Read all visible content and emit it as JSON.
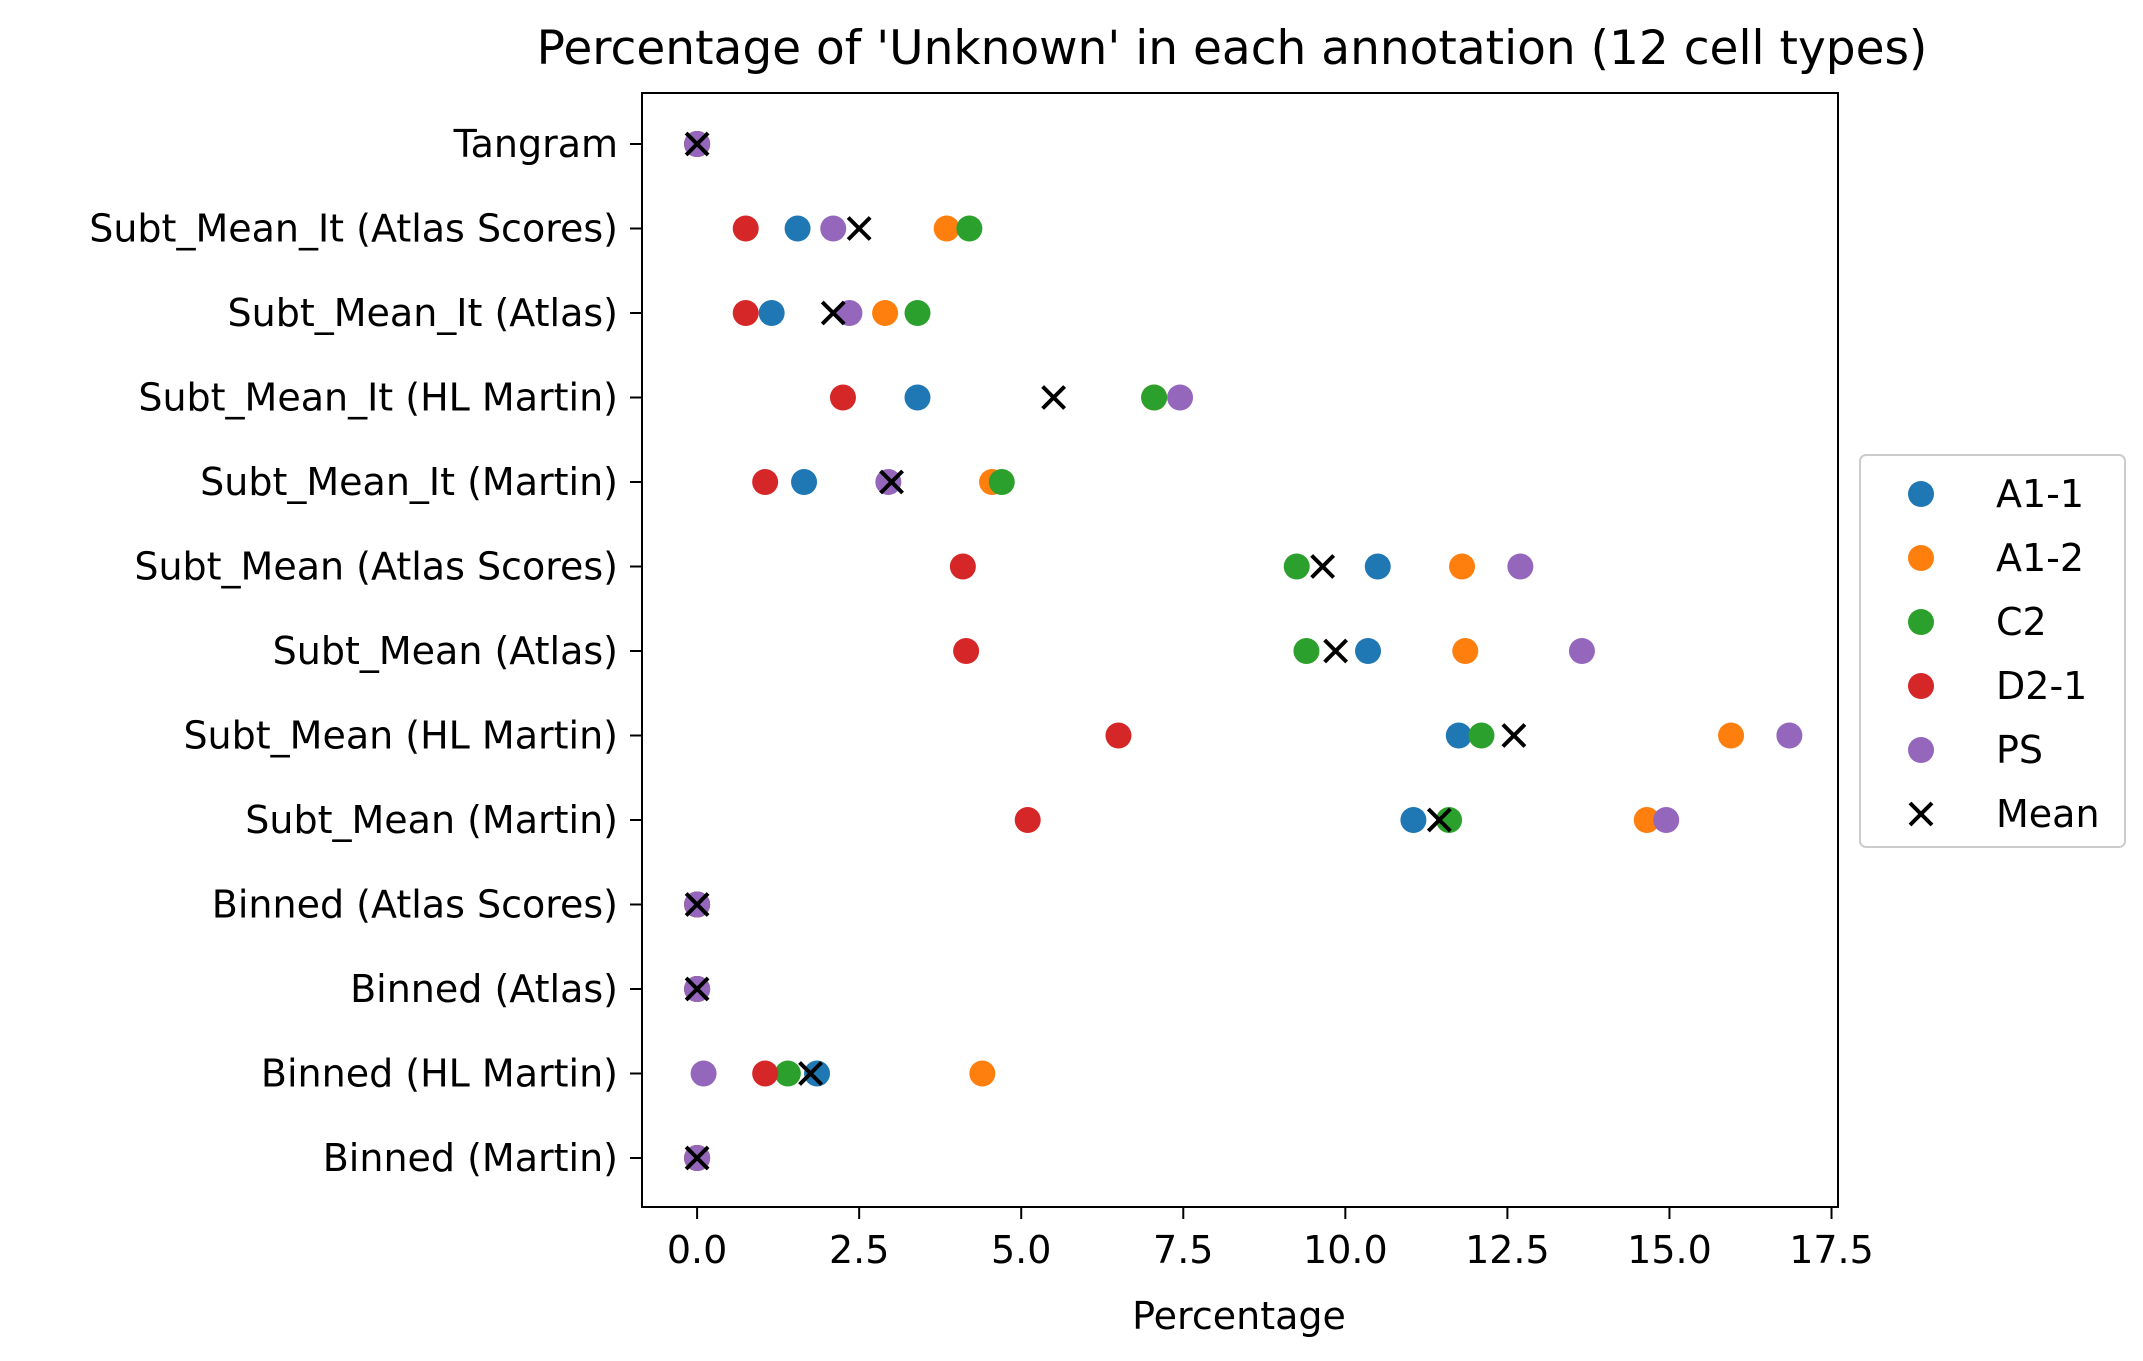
{
  "chart_data": {
    "type": "scatter",
    "title": "Percentage of 'Unknown' in each annotation (12 cell types)",
    "xlabel": "Percentage",
    "ylabel": "",
    "xlim": [
      -0.85,
      17.6
    ],
    "xticks": [
      0.0,
      2.5,
      5.0,
      7.5,
      10.0,
      12.5,
      15.0,
      17.5
    ],
    "xtick_labels": [
      "0.0",
      "2.5",
      "5.0",
      "7.5",
      "10.0",
      "12.5",
      "15.0",
      "17.5"
    ],
    "grid": false,
    "legend_position": "right",
    "categories": [
      "Tangram",
      "Subt_Mean_It (Atlas Scores)",
      "Subt_Mean_It (Atlas)",
      "Subt_Mean_It (HL Martin)",
      "Subt_Mean_It (Martin)",
      "Subt_Mean (Atlas Scores)",
      "Subt_Mean (Atlas)",
      "Subt_Mean (HL Martin)",
      "Subt_Mean (Martin)",
      "Binned (Atlas Scores)",
      "Binned (Atlas)",
      "Binned (HL Martin)",
      "Binned (Martin)"
    ],
    "series": [
      {
        "name": "A1-1",
        "marker": "o",
        "color": "#1f77b4",
        "values": [
          0,
          1.55,
          1.15,
          3.4,
          1.65,
          10.5,
          10.35,
          11.75,
          11.05,
          0,
          0,
          1.85,
          0
        ]
      },
      {
        "name": "A1-2",
        "marker": "o",
        "color": "#ff7f0e",
        "values": [
          0,
          3.85,
          2.9,
          7.05,
          4.55,
          11.8,
          11.85,
          15.95,
          14.65,
          0,
          0,
          4.4,
          0
        ]
      },
      {
        "name": "C2",
        "marker": "o",
        "color": "#2ca02c",
        "values": [
          0,
          4.2,
          3.4,
          7.05,
          4.7,
          9.25,
          9.4,
          12.1,
          11.6,
          0,
          0,
          1.4,
          0
        ]
      },
      {
        "name": "D2-1",
        "marker": "o",
        "color": "#d62728",
        "values": [
          0,
          0.75,
          0.75,
          2.25,
          1.05,
          4.1,
          4.15,
          6.5,
          5.1,
          0,
          0,
          1.05,
          0
        ]
      },
      {
        "name": "PS",
        "marker": "o",
        "color": "#9467bd",
        "values": [
          0,
          2.1,
          2.35,
          7.45,
          2.95,
          12.7,
          13.65,
          16.85,
          14.95,
          0,
          0,
          0.1,
          0
        ]
      },
      {
        "name": "Mean",
        "marker": "x",
        "color": "#000000",
        "values": [
          0,
          2.5,
          2.1,
          5.5,
          3.0,
          9.65,
          9.85,
          12.6,
          11.45,
          0,
          0,
          1.75,
          0
        ]
      }
    ]
  }
}
